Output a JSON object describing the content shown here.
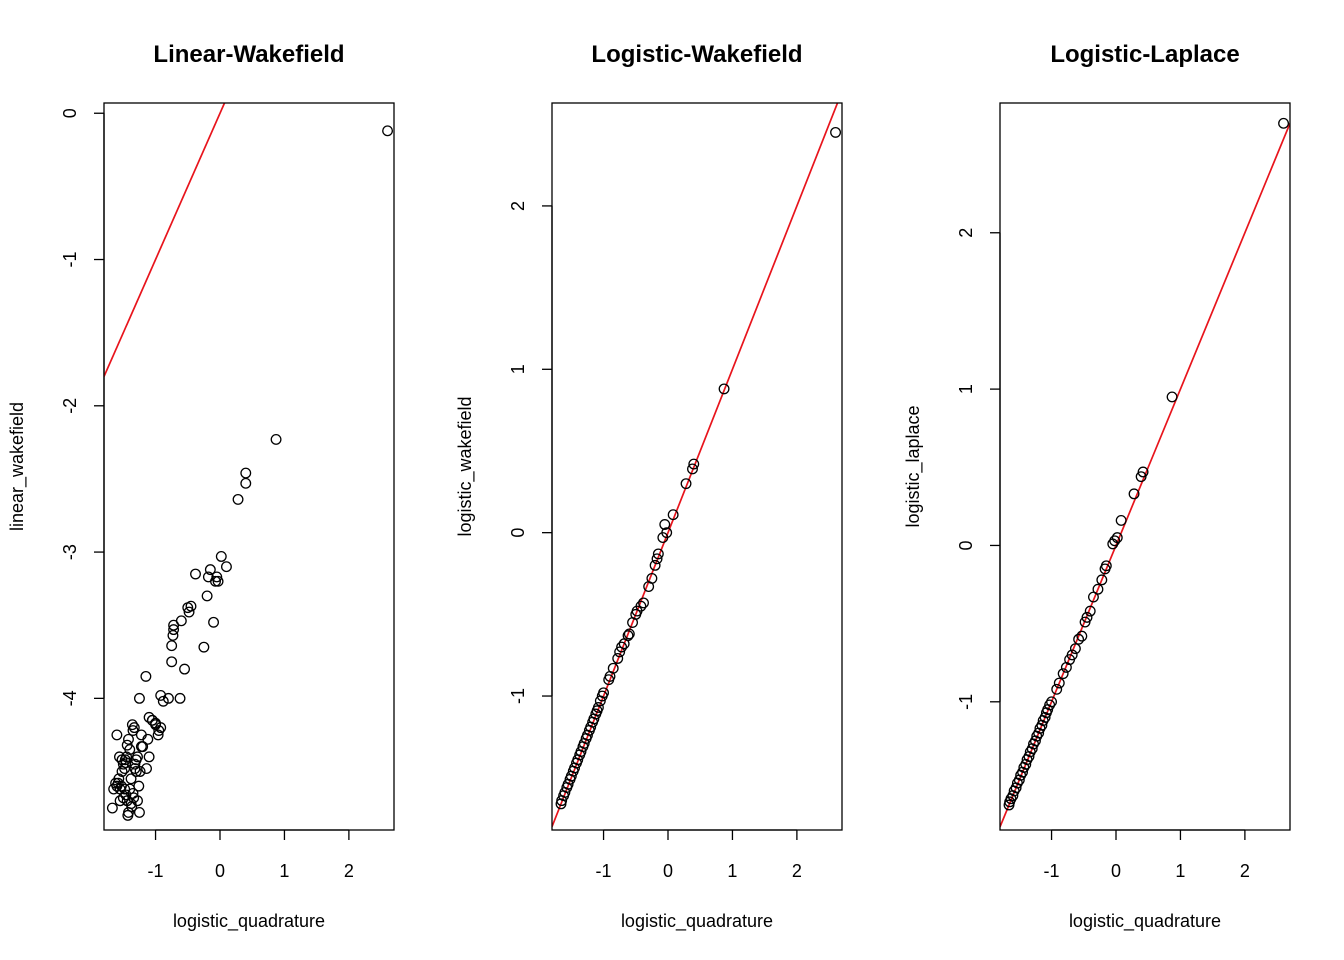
{
  "chart_data": [
    {
      "type": "scatter",
      "title": "Linear-Wakefield",
      "xlabel": "logistic_quadrature",
      "ylabel": "linear_wakefield",
      "xlim": [
        -1.8,
        2.7
      ],
      "ylim": [
        -4.9,
        0.07
      ],
      "xticks": [
        -1,
        0,
        1,
        2
      ],
      "yticks": [
        -4,
        -3,
        -2,
        -1,
        0
      ],
      "ref_line": {
        "intercept": 0,
        "slope": 1,
        "color": "#e8141c"
      },
      "grid": false,
      "x": [
        2.6,
        0.87,
        0.4,
        0.4,
        0.28,
        0.1,
        0.02,
        -0.05,
        -0.07,
        -0.1,
        -0.15,
        -0.18,
        -0.2,
        -0.03,
        -0.25,
        -0.38,
        -0.45,
        -0.5,
        -0.48,
        -0.55,
        -0.6,
        -0.62,
        -0.72,
        -0.72,
        -0.73,
        -0.75,
        -0.75,
        -0.8,
        -0.88,
        -0.92,
        -0.95,
        -1.0,
        -1.05,
        -1.1,
        -1.12,
        -1.15,
        -1.25,
        -1.22,
        -0.92,
        -0.96,
        -1.0,
        -1.05,
        -1.1,
        -1.14,
        -1.2,
        -1.22,
        -1.25,
        -1.28,
        -1.3,
        -1.32,
        -1.33,
        -1.35,
        -1.36,
        -1.38,
        -1.4,
        -1.42,
        -1.44,
        -1.45,
        -1.46,
        -1.47,
        -1.48,
        -1.5,
        -1.52,
        -1.53,
        -1.55,
        -1.56,
        -1.57,
        -1.58,
        -1.6,
        -1.62,
        -1.65,
        -1.67,
        -1.55,
        -1.5,
        -1.42,
        -1.38,
        -1.35,
        -1.32,
        -1.3,
        -1.28,
        -1.26,
        -1.24,
        -1.4,
        -1.46,
        -1.44,
        -1.37,
        -1.34,
        -1.6,
        -1.52,
        -1.48,
        -1.43
      ],
      "y": [
        -0.12,
        -2.23,
        -2.46,
        -2.53,
        -2.64,
        -3.1,
        -3.03,
        -3.17,
        -3.2,
        -3.48,
        -3.12,
        -3.17,
        -3.3,
        -3.2,
        -3.65,
        -3.15,
        -3.37,
        -3.38,
        -3.41,
        -3.8,
        -3.47,
        -4.0,
        -3.5,
        -3.53,
        -3.57,
        -3.64,
        -3.75,
        -4.0,
        -4.02,
        -3.98,
        -4.22,
        -4.17,
        -4.15,
        -4.13,
        -4.28,
        -3.85,
        -4.0,
        -4.33,
        -4.2,
        -4.25,
        -4.18,
        -4.15,
        -4.4,
        -4.48,
        -4.33,
        -4.25,
        -4.78,
        -4.7,
        -4.5,
        -4.45,
        -4.2,
        -4.22,
        -4.18,
        -4.55,
        -4.35,
        -4.28,
        -4.32,
        -4.4,
        -4.44,
        -4.42,
        -4.48,
        -4.45,
        -4.5,
        -4.6,
        -4.62,
        -4.4,
        -4.55,
        -4.58,
        -4.6,
        -4.58,
        -4.62,
        -4.75,
        -4.7,
        -4.68,
        -4.78,
        -4.72,
        -4.65,
        -4.48,
        -4.42,
        -4.4,
        -4.6,
        -4.5,
        -4.62,
        -4.66,
        -4.7,
        -4.74,
        -4.68,
        -4.25,
        -4.42,
        -4.62,
        -4.8
      ]
    },
    {
      "type": "scatter",
      "title": "Logistic-Wakefield",
      "xlabel": "logistic_quadrature",
      "ylabel": "logistic_wakefield",
      "xlim": [
        -1.8,
        2.7
      ],
      "ylim": [
        -1.82,
        2.63
      ],
      "xticks": [
        -1,
        0,
        1,
        2
      ],
      "yticks": [
        -1,
        0,
        1,
        2
      ],
      "ref_line": {
        "intercept": 0,
        "slope": 1,
        "color": "#e8141c"
      },
      "grid": false,
      "x": [
        2.6,
        0.87,
        0.4,
        0.38,
        0.28,
        0.08,
        -0.02,
        -0.05,
        -0.08,
        -0.15,
        -0.17,
        -0.2,
        -0.25,
        -0.3,
        -0.38,
        -0.42,
        -0.48,
        -0.5,
        -0.55,
        -0.6,
        -0.62,
        -0.68,
        -0.72,
        -0.75,
        -0.78,
        -0.85,
        -0.9,
        -0.92,
        -1.0,
        -1.02,
        -1.05,
        -1.08,
        -1.1,
        -1.12,
        -1.15,
        -1.17,
        -1.2,
        -1.22,
        -1.25,
        -1.27,
        -1.3,
        -1.32,
        -1.35,
        -1.37,
        -1.4,
        -1.42,
        -1.45,
        -1.47,
        -1.5,
        -1.52,
        -1.55,
        -1.57,
        -1.6,
        -1.62,
        -1.65,
        -1.66
      ],
      "y": [
        2.45,
        0.88,
        0.42,
        0.39,
        0.3,
        0.11,
        0.0,
        0.05,
        -0.03,
        -0.13,
        -0.16,
        -0.2,
        -0.28,
        -0.33,
        -0.43,
        -0.45,
        -0.48,
        -0.5,
        -0.55,
        -0.62,
        -0.63,
        -0.68,
        -0.7,
        -0.73,
        -0.77,
        -0.83,
        -0.88,
        -0.9,
        -0.98,
        -1.0,
        -1.03,
        -1.07,
        -1.09,
        -1.11,
        -1.14,
        -1.16,
        -1.19,
        -1.21,
        -1.24,
        -1.26,
        -1.29,
        -1.31,
        -1.34,
        -1.36,
        -1.39,
        -1.41,
        -1.44,
        -1.46,
        -1.49,
        -1.51,
        -1.54,
        -1.56,
        -1.59,
        -1.61,
        -1.64,
        -1.66
      ]
    },
    {
      "type": "scatter",
      "title": "Logistic-Laplace",
      "xlabel": "logistic_quadrature",
      "ylabel": "logistic_laplace",
      "xlim": [
        -1.8,
        2.7
      ],
      "ylim": [
        -1.82,
        2.83
      ],
      "xticks": [
        -1,
        0,
        1,
        2
      ],
      "yticks": [
        -1,
        0,
        1,
        2
      ],
      "ref_line": {
        "intercept": 0,
        "slope": 1,
        "color": "#e8141c"
      },
      "grid": false,
      "x": [
        2.6,
        0.87,
        0.42,
        0.39,
        0.28,
        0.08,
        0.02,
        -0.02,
        -0.05,
        -0.15,
        -0.17,
        -0.22,
        -0.28,
        -0.35,
        -0.4,
        -0.45,
        -0.48,
        -0.53,
        -0.58,
        -0.63,
        -0.68,
        -0.72,
        -0.77,
        -0.82,
        -0.88,
        -0.92,
        -1.0,
        -1.03,
        -1.06,
        -1.08,
        -1.1,
        -1.13,
        -1.15,
        -1.18,
        -1.2,
        -1.23,
        -1.25,
        -1.28,
        -1.3,
        -1.33,
        -1.35,
        -1.38,
        -1.4,
        -1.43,
        -1.45,
        -1.48,
        -1.5,
        -1.53,
        -1.55,
        -1.58,
        -1.6,
        -1.63,
        -1.65,
        -1.66
      ],
      "y": [
        2.7,
        0.95,
        0.47,
        0.44,
        0.33,
        0.16,
        0.05,
        0.03,
        0.01,
        -0.13,
        -0.15,
        -0.22,
        -0.28,
        -0.33,
        -0.42,
        -0.46,
        -0.49,
        -0.58,
        -0.6,
        -0.66,
        -0.7,
        -0.73,
        -0.78,
        -0.82,
        -0.88,
        -0.92,
        -1.0,
        -1.02,
        -1.05,
        -1.07,
        -1.1,
        -1.12,
        -1.15,
        -1.17,
        -1.2,
        -1.22,
        -1.25,
        -1.27,
        -1.3,
        -1.32,
        -1.35,
        -1.37,
        -1.4,
        -1.42,
        -1.45,
        -1.47,
        -1.5,
        -1.52,
        -1.55,
        -1.57,
        -1.6,
        -1.62,
        -1.64,
        -1.66
      ]
    }
  ]
}
